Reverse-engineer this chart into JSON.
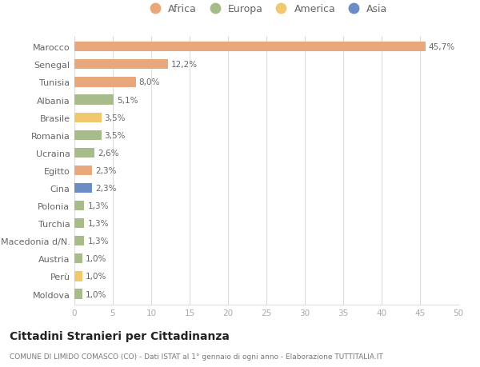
{
  "categories": [
    "Marocco",
    "Senegal",
    "Tunisia",
    "Albania",
    "Brasile",
    "Romania",
    "Ucraina",
    "Egitto",
    "Cina",
    "Polonia",
    "Turchia",
    "Macedonia d/N.",
    "Austria",
    "Perù",
    "Moldova"
  ],
  "values": [
    45.7,
    12.2,
    8.0,
    5.1,
    3.5,
    3.5,
    2.6,
    2.3,
    2.3,
    1.3,
    1.3,
    1.3,
    1.0,
    1.0,
    1.0
  ],
  "labels": [
    "45,7%",
    "12,2%",
    "8,0%",
    "5,1%",
    "3,5%",
    "3,5%",
    "2,6%",
    "2,3%",
    "2,3%",
    "1,3%",
    "1,3%",
    "1,3%",
    "1,0%",
    "1,0%",
    "1,0%"
  ],
  "continents": [
    "Africa",
    "Africa",
    "Africa",
    "Europa",
    "America",
    "Europa",
    "Europa",
    "Africa",
    "Asia",
    "Europa",
    "Europa",
    "Europa",
    "Europa",
    "America",
    "Europa"
  ],
  "colors": {
    "Africa": "#E8A87C",
    "Europa": "#A8BB8A",
    "America": "#F0C96E",
    "Asia": "#6B8CC5"
  },
  "legend_order": [
    "Africa",
    "Europa",
    "America",
    "Asia"
  ],
  "xlim": [
    0,
    50
  ],
  "xticks": [
    0,
    5,
    10,
    15,
    20,
    25,
    30,
    35,
    40,
    45,
    50
  ],
  "title": "Cittadini Stranieri per Cittadinanza",
  "subtitle": "COMUNE DI LIMIDO COMASCO (CO) - Dati ISTAT al 1° gennaio di ogni anno - Elaborazione TUTTITALIA.IT",
  "background_color": "#ffffff",
  "grid_color": "#dddddd",
  "bar_height": 0.55,
  "label_color": "#666666",
  "tick_color": "#aaaaaa",
  "title_color": "#222222",
  "subtitle_color": "#777777"
}
